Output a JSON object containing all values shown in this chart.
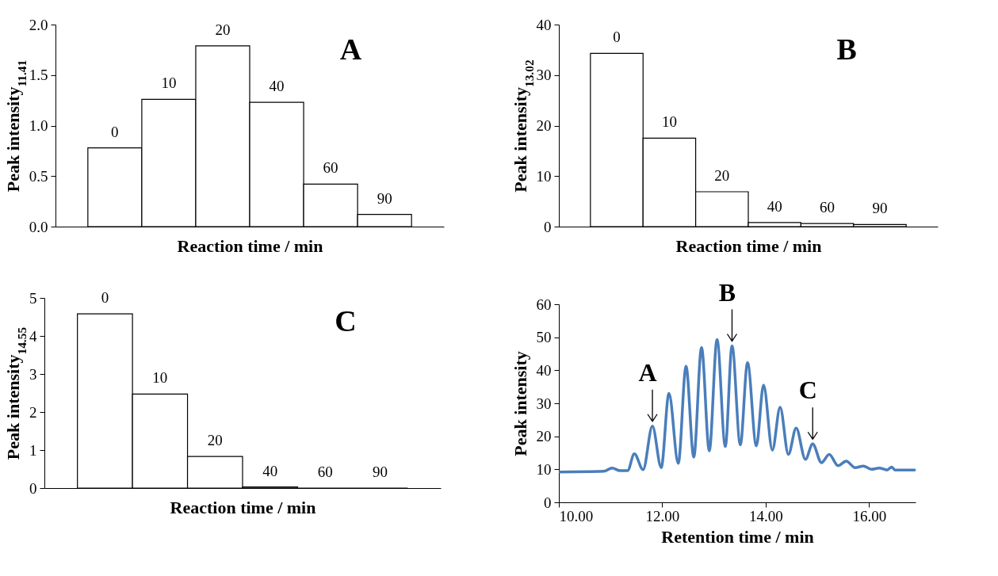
{
  "chart_data": [
    {
      "type": "bar",
      "categories": [
        "0",
        "10",
        "20",
        "40",
        "60",
        "90"
      ],
      "values": [
        0.78,
        1.26,
        1.79,
        1.23,
        0.42,
        0.12
      ],
      "color": "#ffffff",
      "xlabel": "Reaction time / min",
      "ylabel": "Peak intensity$_{11.41}$",
      "ylim": [
        0,
        2
      ],
      "yticks": [
        {
          "value": 0,
          "label": "0.0"
        },
        {
          "value": 0.5,
          "label": "0.5"
        },
        {
          "value": 1,
          "label": "1.0"
        },
        {
          "value": 1.5,
          "label": "1.5"
        },
        {
          "value": 2,
          "label": "2.0"
        }
      ],
      "annotations": [
        "A"
      ]
    },
    {
      "type": "bar",
      "categories": [
        "0",
        "10",
        "20",
        "40",
        "60",
        "90"
      ],
      "values": [
        34.3,
        17.5,
        6.9,
        0.8,
        0.6,
        0.4
      ],
      "color": "#ffffff",
      "xlabel": "Reaction time / min",
      "ylabel": "Peak intensity$_{13.02}$",
      "ylim": [
        0,
        40
      ],
      "yticks": [
        0,
        10,
        20,
        30,
        40
      ],
      "annotations": [
        "B"
      ]
    },
    {
      "type": "bar",
      "categories": [
        "0",
        "10",
        "20",
        "40",
        "60",
        "90"
      ],
      "values": [
        4.58,
        2.47,
        0.83,
        0.03,
        0,
        0
      ],
      "color": "#ffffff",
      "xlabel": "Reaction time / min",
      "ylabel": "Peak intensity$_{14.55}$",
      "ylim": [
        0,
        5
      ],
      "yticks": [
        0,
        1,
        2,
        3,
        4,
        5
      ],
      "annotations": [
        "C"
      ]
    },
    {
      "type": "line",
      "xlabel": "Retention time / min",
      "ylabel": "Peak intensity",
      "xlim": [
        10,
        16.9
      ],
      "xticks": [
        {
          "value": 10,
          "label": "10.00"
        },
        {
          "value": 12,
          "label": "12.00"
        },
        {
          "value": 14,
          "label": "14.00"
        },
        {
          "value": 16,
          "label": "16.00"
        }
      ],
      "ylim": [
        0,
        60
      ],
      "yticks": [
        0,
        10,
        20,
        30,
        40,
        50,
        60
      ],
      "series": [
        {
          "color": "#4a7ebb",
          "x": [
            10.02,
            10.87,
            11.03,
            11.18,
            11.33,
            11.46,
            11.63,
            11.81,
            11.98,
            12.13,
            12.31,
            12.46,
            12.61,
            12.76,
            12.91,
            13.06,
            13.22,
            13.35,
            13.51,
            13.65,
            13.82,
            13.96,
            14.13,
            14.28,
            14.44,
            14.59,
            14.77,
            14.91,
            15.08,
            15.23,
            15.4,
            15.56,
            15.73,
            15.89,
            16.05,
            16.2,
            16.35,
            16.44,
            16.5,
            16.88
          ],
          "values": [
            9.2,
            9.4,
            10.4,
            9.6,
            9.6,
            14.7,
            9.9,
            23.1,
            10.5,
            33.0,
            11.8,
            41.2,
            13.7,
            46.9,
            15.6,
            49.3,
            16.9,
            47.4,
            17.4,
            42.3,
            17.1,
            35.5,
            15.8,
            28.8,
            14.5,
            22.5,
            13.0,
            17.7,
            12.0,
            14.5,
            11.1,
            12.5,
            10.5,
            11.0,
            10.0,
            10.4,
            9.8,
            10.7,
            9.8,
            9.8
          ]
        }
      ],
      "annotations": [
        {
          "text": "A",
          "x": 11.81,
          "y": 23.1
        },
        {
          "text": "B",
          "x": 13.35,
          "y": 47.4
        },
        {
          "text": "C",
          "x": 14.91,
          "y": 17.7
        }
      ]
    }
  ]
}
